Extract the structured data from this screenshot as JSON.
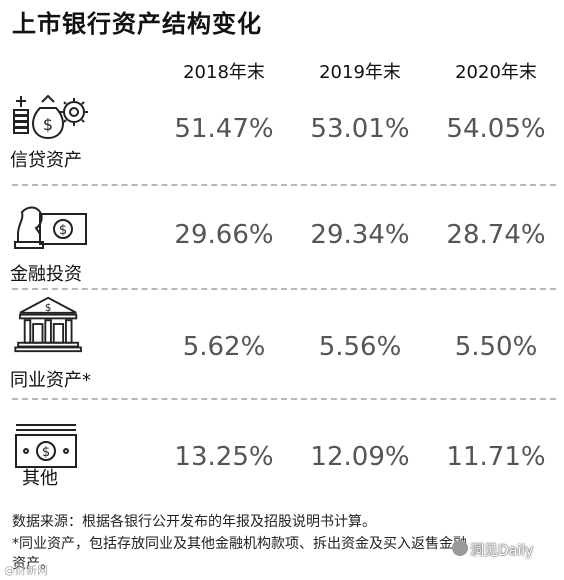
{
  "title": "上市银行资产结构变化",
  "chart_data": {
    "type": "table",
    "columns": [
      "2018年末",
      "2019年末",
      "2020年末"
    ],
    "rows": [
      {
        "label": "信贷资产",
        "icon": "money-bag-coins-gear-icon",
        "values": [
          "51.47%",
          "53.01%",
          "54.05%"
        ]
      },
      {
        "label": "金融投资",
        "icon": "chess-knight-banknote-icon",
        "values": [
          "29.66%",
          "29.34%",
          "28.74%"
        ]
      },
      {
        "label": "同业资产*",
        "icon": "bank-building-icon",
        "values": [
          "5.62%",
          "5.56%",
          "5.50%"
        ]
      },
      {
        "label": "其他",
        "icon": "banknote-stack-icon",
        "values": [
          "13.25%",
          "12.09%",
          "11.71%"
        ]
      }
    ]
  },
  "notes": {
    "source": "数据来源：根据各银行公开发布的年报及招股说明书计算。",
    "footnote_line1": "*同业资产，包括存放同业及其他金融机构款项、拆出资金及买入返售金融",
    "footnote_line2": "资产。"
  },
  "watermarks": {
    "left": "@财新网",
    "right": "洞见Daily"
  },
  "colors": {
    "value_text": "#555555",
    "divider": "#b8b8b8"
  }
}
